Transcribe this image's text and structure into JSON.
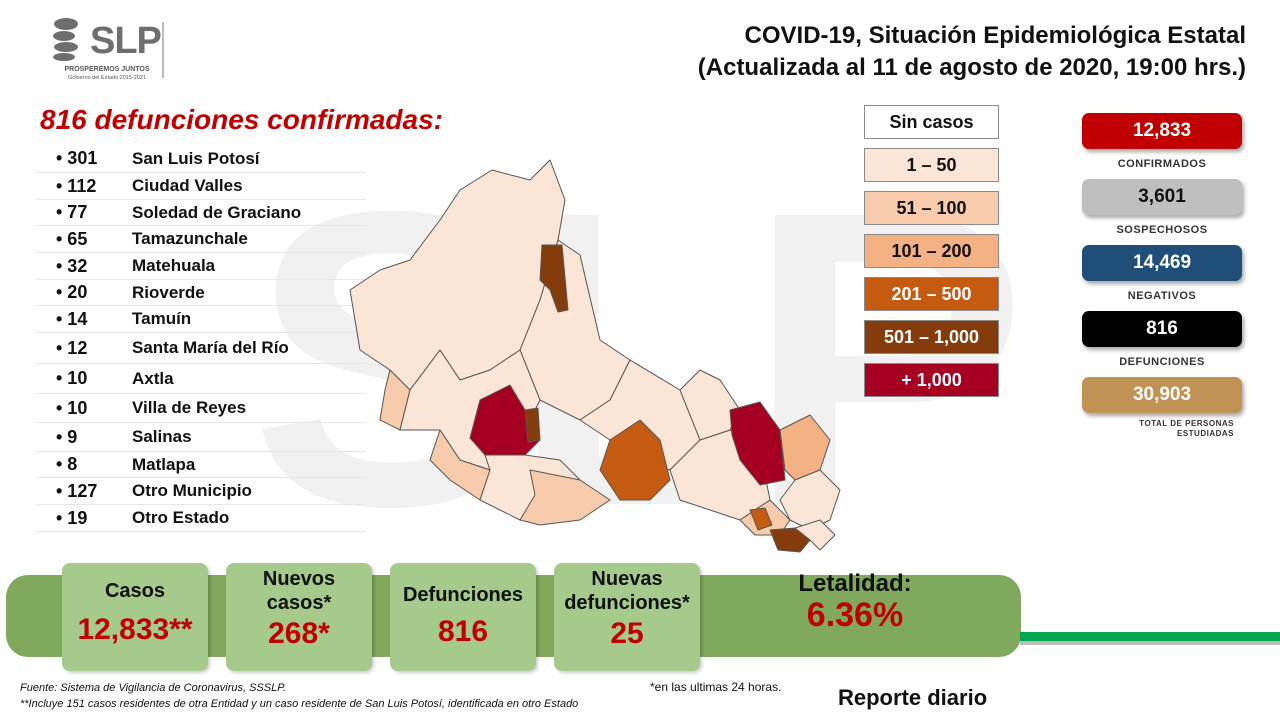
{
  "logo": {
    "text": "SLP",
    "line1": "PROSPEREMOS JUNTOS",
    "line2": "Gobierno del Estado 2015-2021"
  },
  "title": {
    "line1": "COVID-19, Situación Epidemiológica Estatal",
    "line2": "(Actualizada al 11 de agosto de 2020, 19:00 hrs.)"
  },
  "watermark": "SLP",
  "deaths_heading": "816 defunciones confirmadas:",
  "deaths": [
    {
      "count": "• 301",
      "name": "San Luis Potosí"
    },
    {
      "count": "• 112",
      "name": "Ciudad Valles"
    },
    {
      "count": "• 77",
      "name": "Soledad de Graciano"
    },
    {
      "count": "• 65",
      "name": "Tamazunchale"
    },
    {
      "count": "• 32",
      "name": "Matehuala"
    },
    {
      "count": "• 20",
      "name": "Rioverde"
    },
    {
      "count": "• 14",
      "name": "Tamuín"
    },
    {
      "count": "• 12",
      "name": "Santa María del Río"
    },
    {
      "count": "• 10",
      "name": "Axtla"
    },
    {
      "count": "• 10",
      "name": "Villa de Reyes"
    },
    {
      "count": "• 9",
      "name": "Salinas"
    },
    {
      "count": "• 8",
      "name": "Matlapa"
    },
    {
      "count": "• 127",
      "name": "Otro Municipio"
    },
    {
      "count": "• 19",
      "name": "Otro Estado"
    }
  ],
  "legend": [
    {
      "label": "Sin casos",
      "color": "#ffffff",
      "text_color": "#111111"
    },
    {
      "label": "1 – 50",
      "color": "#fbe5d6",
      "text_color": "#111111"
    },
    {
      "label": "51 – 100",
      "color": "#f8cbad",
      "text_color": "#111111"
    },
    {
      "label": "101 – 200",
      "color": "#f4b183",
      "text_color": "#111111"
    },
    {
      "label": "201 – 500",
      "color": "#c55a11",
      "text_color": "#ffffff"
    },
    {
      "label": "501 – 1,000",
      "color": "#843c0c",
      "text_color": "#ffffff"
    },
    {
      "label": "+ 1,000",
      "color": "#a50021",
      "text_color": "#ffffff"
    }
  ],
  "stats": [
    {
      "value": "12,833",
      "label": "CONFIRMADOS",
      "color": "#c00000",
      "text_color": "#ffffff"
    },
    {
      "value": "3,601",
      "label": "SOSPECHOSOS",
      "color": "#bfbfbf",
      "text_color": "#111111"
    },
    {
      "value": "14,469",
      "label": "NEGATIVOS",
      "color": "#1f4e79",
      "text_color": "#ffffff"
    },
    {
      "value": "816",
      "label": "DEFUNCIONES",
      "color": "#000000",
      "text_color": "#ffffff"
    },
    {
      "value": "30,903",
      "label": "TOTAL DE PERSONAS ESTUDIADAS",
      "color": "#c09254",
      "text_color": "#ffffff"
    }
  ],
  "summary": {
    "cases_label": "Casos",
    "cases_value": "12,833**",
    "new_cases_label": "Nuevos casos*",
    "new_cases_value": "268*",
    "deaths_label": "Defunciones",
    "deaths_value": "816",
    "new_deaths_label": "Nuevas defunciones*",
    "new_deaths_value": "25",
    "lethality_label": "Letalidad:",
    "lethality_value": "6.36%"
  },
  "footer": {
    "source": "Fuente: Sistema de Vigilancia  de Coronavirus, SSSLP.",
    "note": "**Incluye 151 casos residentes de otra Entidad  y un caso residente de San Luis Potosí, identificada  en otro Estado",
    "last24": "*en las ultimas 24 horas.",
    "report": "Reporte diario"
  }
}
